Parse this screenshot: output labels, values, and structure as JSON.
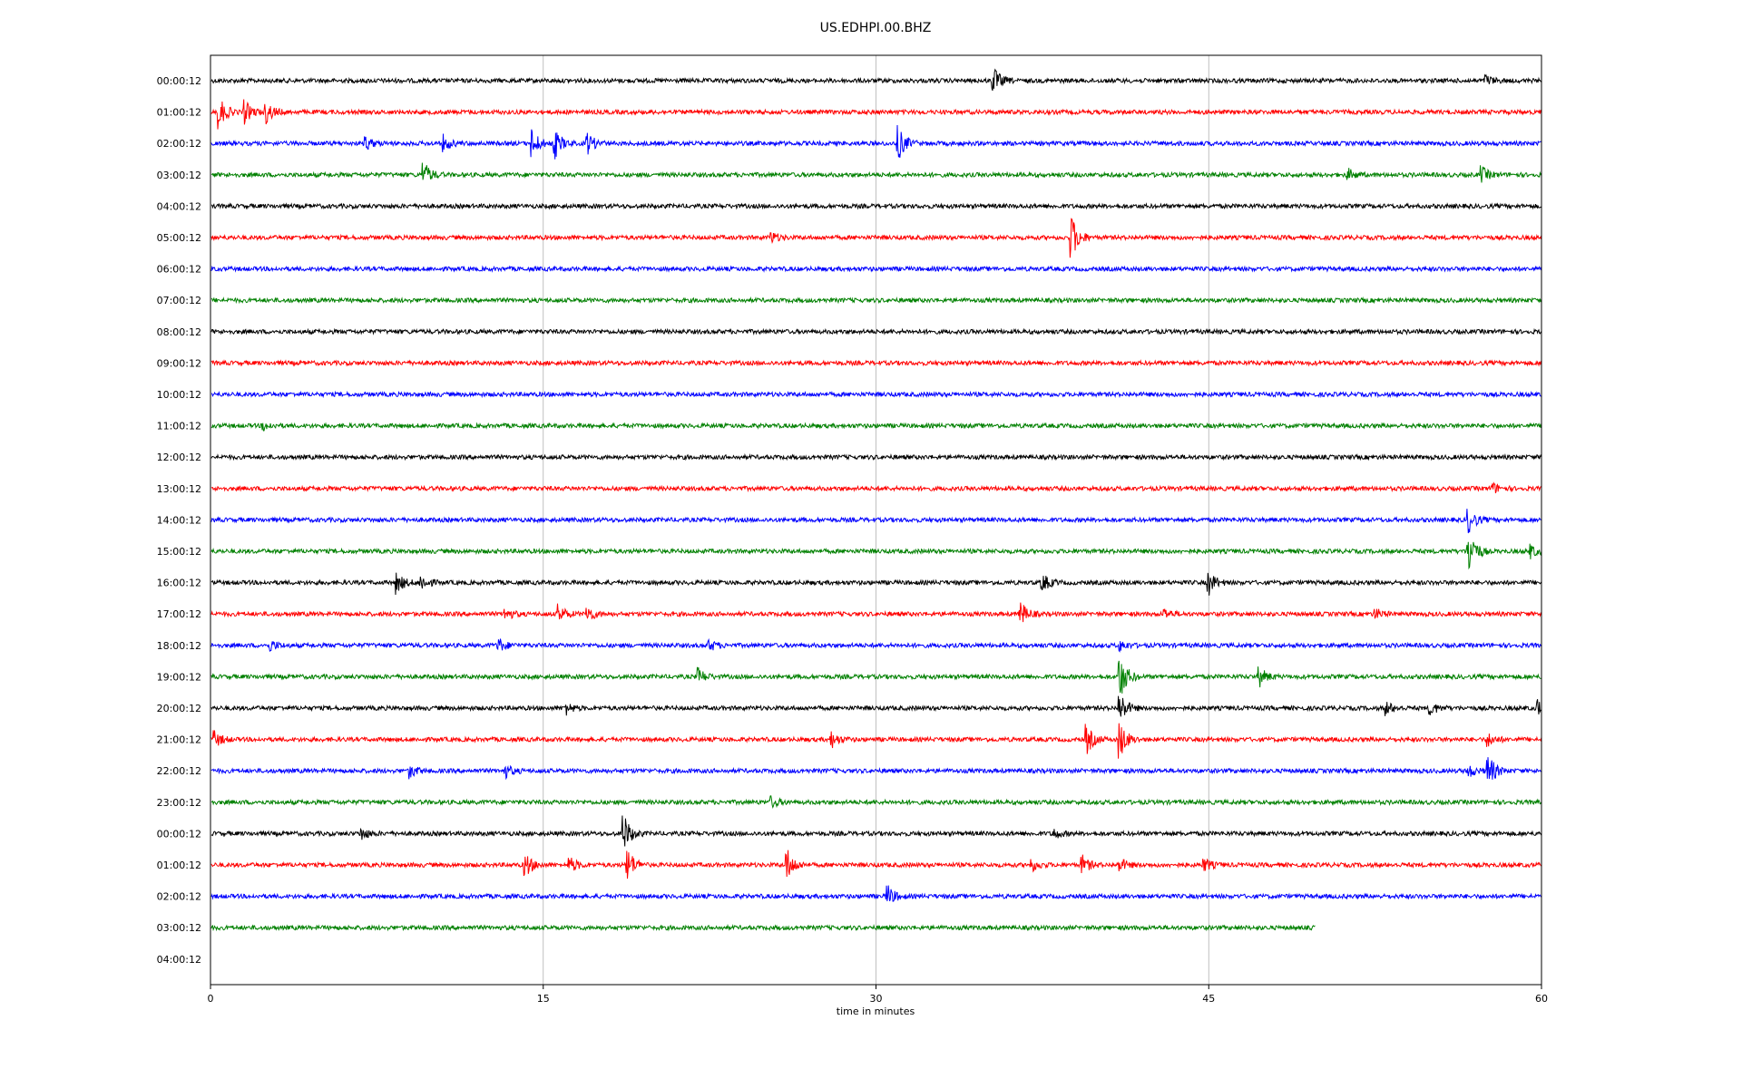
{
  "chart_data": {
    "type": "line",
    "title": "US.EDHPI.00.BHZ",
    "xlabel": "time in minutes",
    "ylabel": "",
    "xlim": [
      0,
      60
    ],
    "x_ticks": [
      "0",
      "15",
      "30",
      "45",
      "60"
    ],
    "vertical_grid_at_minutes": [
      15,
      30,
      45
    ],
    "grid": true,
    "row_labels": [
      "00:00:12",
      "01:00:12",
      "02:00:12",
      "03:00:12",
      "04:00:12",
      "05:00:12",
      "06:00:12",
      "07:00:12",
      "08:00:12",
      "09:00:12",
      "10:00:12",
      "11:00:12",
      "12:00:12",
      "13:00:12",
      "14:00:12",
      "15:00:12",
      "16:00:12",
      "17:00:12",
      "18:00:12",
      "19:00:12",
      "20:00:12",
      "21:00:12",
      "22:00:12",
      "23:00:12",
      "00:00:12",
      "01:00:12",
      "02:00:12",
      "03:00:12",
      "04:00:12"
    ],
    "color_cycle": [
      "#000000",
      "#ff0000",
      "#0000ff",
      "#008000"
    ],
    "trace_end_minutes": [
      60,
      60,
      60,
      60,
      60,
      60,
      60,
      60,
      60,
      60,
      60,
      60,
      60,
      60,
      60,
      60,
      60,
      60,
      60,
      60,
      60,
      60,
      60,
      60,
      60,
      60,
      60,
      49.8,
      0
    ],
    "events": [
      {
        "row": 0,
        "minute": 35.3,
        "amp": 1.0
      },
      {
        "row": 0,
        "minute": 57.5,
        "amp": 0.4
      },
      {
        "row": 1,
        "minute": 0.4,
        "amp": 1.2
      },
      {
        "row": 1,
        "minute": 1.5,
        "amp": 1.0
      },
      {
        "row": 1,
        "minute": 2.5,
        "amp": 0.9
      },
      {
        "row": 2,
        "minute": 7.0,
        "amp": 0.5
      },
      {
        "row": 2,
        "minute": 10.5,
        "amp": 0.6
      },
      {
        "row": 2,
        "minute": 14.5,
        "amp": 1.1
      },
      {
        "row": 2,
        "minute": 15.5,
        "amp": 1.2
      },
      {
        "row": 2,
        "minute": 17.0,
        "amp": 0.8
      },
      {
        "row": 2,
        "minute": 31.0,
        "amp": 1.3
      },
      {
        "row": 3,
        "minute": 9.6,
        "amp": 1.0
      },
      {
        "row": 3,
        "minute": 51.3,
        "amp": 0.4
      },
      {
        "row": 3,
        "minute": 57.3,
        "amp": 0.6
      },
      {
        "row": 5,
        "minute": 25.3,
        "amp": 0.4
      },
      {
        "row": 5,
        "minute": 38.8,
        "amp": 1.8
      },
      {
        "row": 11,
        "minute": 2.4,
        "amp": 0.3
      },
      {
        "row": 13,
        "minute": 57.8,
        "amp": 0.4
      },
      {
        "row": 14,
        "minute": 56.7,
        "amp": 1.0
      },
      {
        "row": 15,
        "minute": 56.7,
        "amp": 2.1
      },
      {
        "row": 15,
        "minute": 59.5,
        "amp": 0.5
      },
      {
        "row": 16,
        "minute": 8.4,
        "amp": 0.8
      },
      {
        "row": 16,
        "minute": 9.5,
        "amp": 0.6
      },
      {
        "row": 16,
        "minute": 37.5,
        "amp": 0.7
      },
      {
        "row": 16,
        "minute": 45.0,
        "amp": 0.9
      },
      {
        "row": 17,
        "minute": 13.3,
        "amp": 0.5
      },
      {
        "row": 17,
        "minute": 15.7,
        "amp": 0.7
      },
      {
        "row": 17,
        "minute": 17.0,
        "amp": 0.6
      },
      {
        "row": 17,
        "minute": 36.5,
        "amp": 1.0
      },
      {
        "row": 17,
        "minute": 43.0,
        "amp": 0.4
      },
      {
        "row": 17,
        "minute": 52.5,
        "amp": 0.4
      },
      {
        "row": 18,
        "minute": 2.7,
        "amp": 0.4
      },
      {
        "row": 18,
        "minute": 13.0,
        "amp": 0.5
      },
      {
        "row": 18,
        "minute": 22.5,
        "amp": 0.4
      },
      {
        "row": 18,
        "minute": 41.0,
        "amp": 0.4
      },
      {
        "row": 19,
        "minute": 22.0,
        "amp": 0.6
      },
      {
        "row": 19,
        "minute": 47.3,
        "amp": 0.7
      },
      {
        "row": 19,
        "minute": 41.0,
        "amp": 1.8
      },
      {
        "row": 20,
        "minute": 16.0,
        "amp": 0.5
      },
      {
        "row": 20,
        "minute": 41.0,
        "amp": 1.2
      },
      {
        "row": 20,
        "minute": 53.0,
        "amp": 0.5
      },
      {
        "row": 20,
        "minute": 55.0,
        "amp": 0.5
      },
      {
        "row": 20,
        "minute": 59.8,
        "amp": 0.7
      },
      {
        "row": 21,
        "minute": 0.2,
        "amp": 0.6
      },
      {
        "row": 21,
        "minute": 28.0,
        "amp": 0.6
      },
      {
        "row": 21,
        "minute": 39.5,
        "amp": 1.1
      },
      {
        "row": 21,
        "minute": 41.0,
        "amp": 1.4
      },
      {
        "row": 21,
        "minute": 57.6,
        "amp": 0.5
      },
      {
        "row": 22,
        "minute": 9.0,
        "amp": 0.5
      },
      {
        "row": 22,
        "minute": 13.3,
        "amp": 0.5
      },
      {
        "row": 22,
        "minute": 56.7,
        "amp": 0.5
      },
      {
        "row": 22,
        "minute": 57.6,
        "amp": 1.3
      },
      {
        "row": 23,
        "minute": 25.3,
        "amp": 0.4
      },
      {
        "row": 24,
        "minute": 6.8,
        "amp": 0.5
      },
      {
        "row": 24,
        "minute": 38.0,
        "amp": 0.4
      },
      {
        "row": 24,
        "minute": 18.6,
        "amp": 1.6
      },
      {
        "row": 25,
        "minute": 14.2,
        "amp": 0.9
      },
      {
        "row": 25,
        "minute": 16.2,
        "amp": 0.6
      },
      {
        "row": 25,
        "minute": 18.8,
        "amp": 1.3
      },
      {
        "row": 25,
        "minute": 26.0,
        "amp": 1.2
      },
      {
        "row": 25,
        "minute": 37.0,
        "amp": 0.5
      },
      {
        "row": 25,
        "minute": 39.3,
        "amp": 0.7
      },
      {
        "row": 25,
        "minute": 41.0,
        "amp": 0.5
      },
      {
        "row": 25,
        "minute": 44.8,
        "amp": 0.5
      },
      {
        "row": 26,
        "minute": 30.5,
        "amp": 0.9
      }
    ]
  }
}
